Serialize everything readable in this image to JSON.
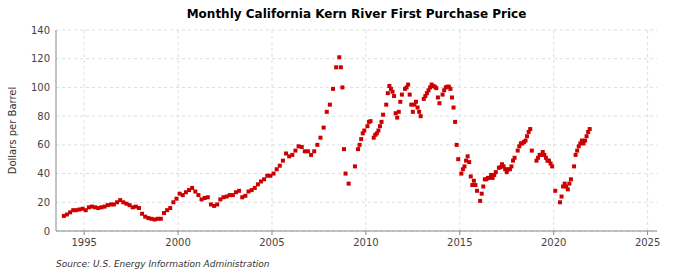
{
  "chart_data": {
    "type": "scatter",
    "title": "Monthly California Kern River First Purchase Price",
    "ylabel": "Dollars per Barrel",
    "annotations": [
      "Source: U.S. Energy Information Administration"
    ],
    "xlim": [
      1993.5,
      2025.5
    ],
    "ylim": [
      0,
      140
    ],
    "xticks": [
      1995,
      2000,
      2005,
      2010,
      2015,
      2020,
      2025
    ],
    "yticks": [
      0,
      20,
      40,
      60,
      80,
      100,
      120,
      140
    ],
    "grid": true,
    "color": "#cc0000",
    "marker": "square",
    "x": [
      1993.917,
      1994.083,
      1994.25,
      1994.417,
      1994.583,
      1994.75,
      1994.917,
      1995.083,
      1995.25,
      1995.417,
      1995.583,
      1995.75,
      1995.917,
      1996.083,
      1996.25,
      1996.417,
      1996.583,
      1996.75,
      1996.917,
      1997.083,
      1997.25,
      1997.417,
      1997.583,
      1997.75,
      1997.917,
      1998.083,
      1998.25,
      1998.417,
      1998.583,
      1998.75,
      1998.917,
      1999.083,
      1999.25,
      1999.417,
      1999.583,
      1999.75,
      1999.917,
      2000.083,
      2000.25,
      2000.417,
      2000.583,
      2000.75,
      2000.917,
      2001.083,
      2001.25,
      2001.417,
      2001.583,
      2001.75,
      2001.917,
      2002.083,
      2002.25,
      2002.417,
      2002.583,
      2002.75,
      2002.917,
      2003.083,
      2003.25,
      2003.417,
      2003.583,
      2003.75,
      2003.917,
      2004.083,
      2004.25,
      2004.417,
      2004.583,
      2004.75,
      2004.917,
      2005.083,
      2005.25,
      2005.417,
      2005.583,
      2005.75,
      2005.917,
      2006.083,
      2006.25,
      2006.417,
      2006.583,
      2006.75,
      2006.917,
      2007.083,
      2007.25,
      2007.417,
      2007.583,
      2007.75,
      2007.917,
      2008.083,
      2008.25,
      2008.417,
      2008.583,
      2008.667,
      2008.75,
      2008.833,
      2008.917,
      2009.083,
      2009.417,
      2009.583,
      2009.667,
      2009.75,
      2009.833,
      2009.917,
      2010.083,
      2010.167,
      2010.25,
      2010.417,
      2010.5,
      2010.583,
      2010.667,
      2010.75,
      2010.833,
      2010.917,
      2011.083,
      2011.167,
      2011.25,
      2011.333,
      2011.417,
      2011.5,
      2011.583,
      2011.667,
      2011.75,
      2011.833,
      2011.917,
      2012.083,
      2012.167,
      2012.25,
      2012.333,
      2012.417,
      2012.5,
      2012.583,
      2012.667,
      2012.75,
      2012.833,
      2012.917,
      2013.083,
      2013.167,
      2013.25,
      2013.333,
      2013.417,
      2013.5,
      2013.583,
      2013.667,
      2013.75,
      2013.833,
      2013.917,
      2014.083,
      2014.167,
      2014.25,
      2014.333,
      2014.417,
      2014.5,
      2014.583,
      2014.667,
      2014.75,
      2014.833,
      2014.917,
      2015.083,
      2015.167,
      2015.25,
      2015.333,
      2015.417,
      2015.5,
      2015.583,
      2015.667,
      2015.75,
      2015.833,
      2015.917,
      2016.083,
      2016.167,
      2016.25,
      2016.333,
      2016.417,
      2016.5,
      2016.583,
      2016.667,
      2016.75,
      2016.833,
      2016.917,
      2017.083,
      2017.167,
      2017.25,
      2017.333,
      2017.417,
      2017.5,
      2017.583,
      2017.667,
      2017.75,
      2017.833,
      2017.917,
      2018.083,
      2018.167,
      2018.25,
      2018.333,
      2018.417,
      2018.5,
      2018.583,
      2018.667,
      2018.75,
      2018.833,
      2019.083,
      2019.167,
      2019.25,
      2019.333,
      2019.417,
      2019.5,
      2019.583,
      2019.667,
      2019.75,
      2019.833,
      2019.917,
      2020.083,
      2020.333,
      2020.417,
      2020.5,
      2020.583,
      2020.667,
      2020.75,
      2020.833,
      2020.917,
      2021.083,
      2021.167,
      2021.25,
      2021.333,
      2021.417,
      2021.5,
      2021.583,
      2021.667,
      2021.75,
      2021.833,
      2021.917
    ],
    "values": [
      10.5,
      11.5,
      13.0,
      14.5,
      14.5,
      15.0,
      15.5,
      14.5,
      16.5,
      17.0,
      16.5,
      16.0,
      16.5,
      17.0,
      18.0,
      18.5,
      18.5,
      20.0,
      21.5,
      20.0,
      19.0,
      18.0,
      16.5,
      17.0,
      16.0,
      12.0,
      10.0,
      9.0,
      8.5,
      8.0,
      8.5,
      8.5,
      12.5,
      14.5,
      16.0,
      20.0,
      22.5,
      26.0,
      25.0,
      27.0,
      28.5,
      30.0,
      27.5,
      25.0,
      22.0,
      23.0,
      23.5,
      18.5,
      17.5,
      18.5,
      22.0,
      23.5,
      24.0,
      25.0,
      25.0,
      27.0,
      28.0,
      23.5,
      24.5,
      27.5,
      28.5,
      30.0,
      32.5,
      34.5,
      36.0,
      38.5,
      38.5,
      40.0,
      43.0,
      45.5,
      49.0,
      54.0,
      52.0,
      53.0,
      56.0,
      59.0,
      58.5,
      55.5,
      55.5,
      53.0,
      55.5,
      60.0,
      65.0,
      72.0,
      83.0,
      88.0,
      99.0,
      114.0,
      121.0,
      114.0,
      100.0,
      57.0,
      40.0,
      33.0,
      45.0,
      57.0,
      60.0,
      64.0,
      68.0,
      70.0,
      73.0,
      76.0,
      76.5,
      65.0,
      67.0,
      68.0,
      70.0,
      73.0,
      76.0,
      81.0,
      88.0,
      96.0,
      101.0,
      99.0,
      97.0,
      94.0,
      82.0,
      79.0,
      83.0,
      90.0,
      95.0,
      99.0,
      100.0,
      102.0,
      95.0,
      88.0,
      83.0,
      88.0,
      90.0,
      86.0,
      83.0,
      80.0,
      92.0,
      94.0,
      96.0,
      98.0,
      100.0,
      102.0,
      101.0,
      100.5,
      99.5,
      93.0,
      89.0,
      95.0,
      98.0,
      100.0,
      100.5,
      100.5,
      99.0,
      93.0,
      86.0,
      76.0,
      60.0,
      50.0,
      40.0,
      43.0,
      45.0,
      49.0,
      52.0,
      48.0,
      38.0,
      32.0,
      35.0,
      32.0,
      28.0,
      21.0,
      26.0,
      31.0,
      36.0,
      36.0,
      37.0,
      37.0,
      39.0,
      37.0,
      39.0,
      41.0,
      44.0,
      44.5,
      46.5,
      45.0,
      43.0,
      41.0,
      43.0,
      43.0,
      45.0,
      49.0,
      51.0,
      56.0,
      59.0,
      61.0,
      61.0,
      62.0,
      63.0,
      66.0,
      69.0,
      71.0,
      56.0,
      49.0,
      51.0,
      53.0,
      53.0,
      55.0,
      53.0,
      51.0,
      49.0,
      49.0,
      47.0,
      45.0,
      28.0,
      20.0,
      24.0,
      31.0,
      33.0,
      31.0,
      29.0,
      33.0,
      36.0,
      45.0,
      53.0,
      56.0,
      59.0,
      61.0,
      63.0,
      61.0,
      63.0,
      66.0,
      69.0,
      71.0
    ]
  }
}
